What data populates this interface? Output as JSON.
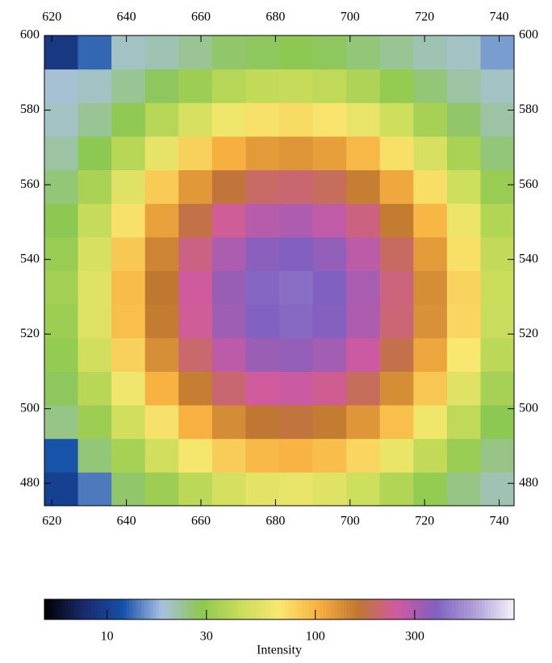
{
  "chart_data": {
    "type": "heatmap",
    "xbins": [
      618,
      627,
      636,
      645,
      654,
      663,
      672,
      681,
      690,
      699,
      708,
      717,
      726,
      735,
      744
    ],
    "ybins": [
      474,
      483,
      492,
      501,
      510,
      519,
      528,
      537,
      546,
      555,
      564,
      573,
      582,
      591,
      600
    ],
    "z": [
      [
        10,
        14,
        26,
        32,
        40,
        49,
        56,
        58,
        54,
        46,
        37,
        30,
        24,
        21
      ],
      [
        12,
        25,
        34,
        47,
        65,
        83,
        97,
        101,
        93,
        77,
        59,
        42,
        31,
        24
      ],
      [
        24,
        32,
        47,
        71,
        103,
        137,
        161,
        168,
        155,
        126,
        92,
        62,
        41,
        28
      ],
      [
        27,
        39,
        63,
        102,
        152,
        205,
        243,
        254,
        233,
        188,
        134,
        87,
        54,
        34
      ],
      [
        30,
        47,
        80,
        133,
        202,
        274,
        327,
        342,
        313,
        251,
        178,
        113,
        67,
        40
      ],
      [
        32,
        53,
        92,
        154,
        237,
        322,
        385,
        403,
        368,
        295,
        208,
        131,
        77,
        44
      ],
      [
        33,
        54,
        94,
        159,
        244,
        332,
        397,
        415,
        379,
        304,
        214,
        135,
        78,
        45
      ],
      [
        31,
        50,
        86,
        144,
        220,
        299,
        357,
        374,
        342,
        274,
        193,
        122,
        72,
        42
      ],
      [
        28,
        43,
        71,
        116,
        175,
        237,
        282,
        295,
        270,
        217,
        154,
        99,
        60,
        37
      ],
      [
        25,
        35,
        54,
        84,
        124,
        166,
        196,
        205,
        188,
        152,
        110,
        73,
        46,
        31
      ],
      [
        22,
        28,
        39,
        57,
        80,
        104,
        122,
        127,
        118,
        97,
        72,
        50,
        35,
        25
      ],
      [
        20,
        23,
        29,
        38,
        50,
        62,
        71,
        74,
        69,
        58,
        46,
        34,
        26,
        22
      ],
      [
        19,
        20,
        23,
        27,
        32,
        38,
        42,
        43,
        41,
        36,
        30,
        25,
        22,
        20
      ],
      [
        9,
        13,
        20,
        21,
        23,
        26,
        27,
        28,
        27,
        25,
        23,
        21,
        20,
        16
      ]
    ],
    "xlim": [
      618,
      744
    ],
    "ylim": [
      474,
      600
    ],
    "xticks": [
      620,
      640,
      660,
      680,
      700,
      720,
      740
    ],
    "yticks": [
      480,
      500,
      520,
      540,
      560,
      580,
      600
    ],
    "colorbar": {
      "label": "Intensity",
      "lim": [
        5,
        900
      ],
      "log": true,
      "ticks": [
        10,
        30,
        100,
        300
      ],
      "colors": [
        "#000000",
        "#1a2a6c",
        "#1450a8",
        "#a8c0e0",
        "#8cc850",
        "#c8dc5a",
        "#f8e870",
        "#f8b040",
        "#c07830",
        "#d05aa0",
        "#8060c0",
        "#b0a0d8",
        "#f4f2fa"
      ]
    }
  }
}
